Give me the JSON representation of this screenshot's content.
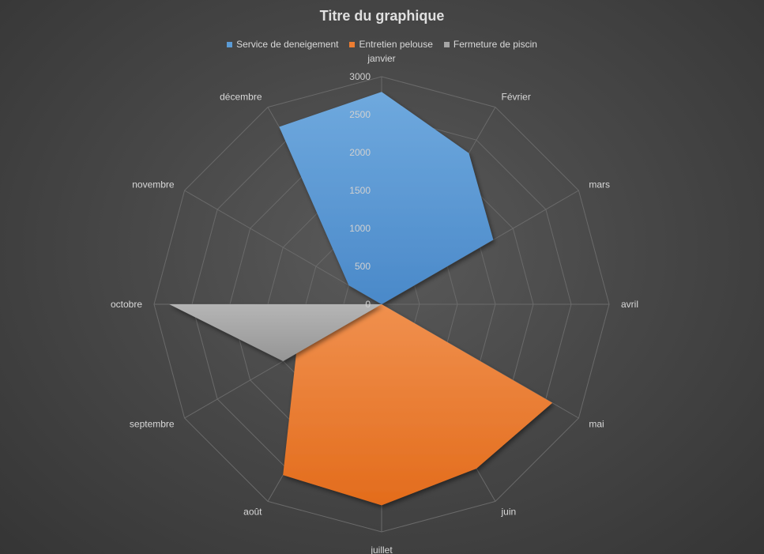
{
  "chart_data": {
    "type": "radar",
    "title": "Titre du graphique",
    "categories": [
      "janvier",
      "Février",
      "mars",
      "avril",
      "mai",
      "juin",
      "juillet",
      "août",
      "septembre",
      "octobre",
      "novembre",
      "décembre"
    ],
    "ylim": [
      0,
      3000
    ],
    "ticks": [
      "0",
      "500",
      "1000",
      "1500",
      "2000",
      "2500",
      "3000"
    ],
    "legend_position": "top",
    "grid": true,
    "series": [
      {
        "name": "Service de deneigement",
        "color": "#5b9bd5",
        "values": [
          2800,
          2300,
          1700,
          0,
          0,
          0,
          0,
          0,
          0,
          0,
          500,
          2700
        ]
      },
      {
        "name": "Entretien pelouse",
        "color": "#ed7d31",
        "values": [
          0,
          0,
          0,
          0,
          2600,
          2500,
          2650,
          2600,
          1300,
          0,
          0,
          0
        ]
      },
      {
        "name": "Fermeture de piscin",
        "color": "#a5a5a5",
        "values": [
          0,
          0,
          0,
          0,
          0,
          0,
          0,
          0,
          1500,
          2800,
          0,
          0
        ]
      }
    ]
  }
}
